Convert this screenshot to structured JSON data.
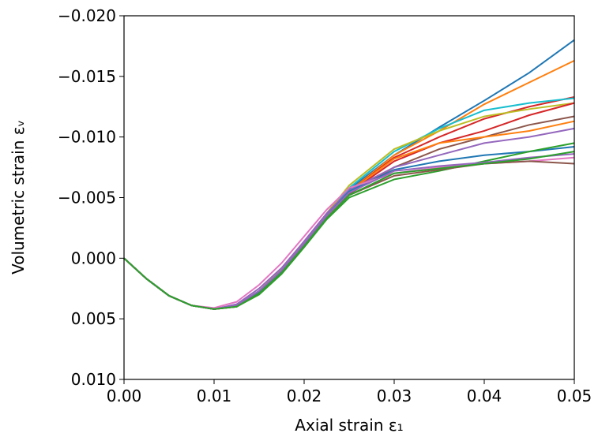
{
  "chart_data": {
    "type": "line",
    "xlabel": "Axial strain ε₁",
    "ylabel": "Volumetric strain εᵥ",
    "x": [
      0,
      0.0025,
      0.005,
      0.0075,
      0.01,
      0.0125,
      0.015,
      0.0175,
      0.02,
      0.0225,
      0.025,
      0.03,
      0.035,
      0.04,
      0.045,
      0.05
    ],
    "xlim": [
      0,
      0.05
    ],
    "xticks": [
      {
        "value": 0,
        "label": "0.00"
      },
      0.01,
      0.02,
      0.03,
      0.04,
      0.05
    ],
    "ylim": [
      0.01,
      -0.02
    ],
    "yticks": [
      {
        "value": 0.01,
        "label": "0.010"
      },
      0.005,
      {
        "value": 0,
        "label": "0.000"
      },
      {
        "value": -0.005,
        "label": "−0.005"
      },
      {
        "value": -0.01,
        "label": "−0.010"
      },
      {
        "value": -0.015,
        "label": "−0.015"
      },
      {
        "value": -0.02,
        "label": "−0.020"
      }
    ],
    "grid": false,
    "series": [
      {
        "color": "#1f77b4",
        "values": [
          0,
          0.0017,
          0.0031,
          0.0039,
          0.0042,
          0.0039,
          0.0027,
          0.001,
          -0.0012,
          -0.0036,
          -0.0057,
          -0.0085,
          -0.0108,
          -0.013,
          -0.0153,
          -0.018
        ]
      },
      {
        "color": "#ff7f0e",
        "values": [
          0,
          0.0017,
          0.0031,
          0.0039,
          0.0042,
          0.0039,
          0.0028,
          0.0011,
          -0.0011,
          -0.0034,
          -0.0055,
          -0.0085,
          -0.0105,
          -0.0127,
          -0.0145,
          -0.0163
        ]
      },
      {
        "color": "#d62728",
        "values": [
          0,
          0.0017,
          0.0031,
          0.0039,
          0.0042,
          0.0039,
          0.0028,
          0.0011,
          -0.0011,
          -0.0035,
          -0.0055,
          -0.0083,
          -0.01,
          -0.0115,
          -0.0125,
          -0.0133
        ]
      },
      {
        "color": "#17becf",
        "values": [
          0,
          0.0017,
          0.0031,
          0.0039,
          0.0042,
          0.0039,
          0.0027,
          0.001,
          -0.0012,
          -0.0036,
          -0.0058,
          -0.0088,
          -0.0107,
          -0.0122,
          -0.0128,
          -0.0132
        ]
      },
      {
        "color": "#bcbd22",
        "values": [
          0,
          0.0017,
          0.0031,
          0.0039,
          0.0042,
          0.0039,
          0.0027,
          0.0009,
          -0.0013,
          -0.0037,
          -0.006,
          -0.009,
          -0.0105,
          -0.0117,
          -0.0123,
          -0.0128
        ]
      },
      {
        "color": "#d62728",
        "values": [
          0,
          0.0017,
          0.0031,
          0.0039,
          0.0042,
          0.0039,
          0.0028,
          0.0011,
          -0.0011,
          -0.0034,
          -0.0054,
          -0.008,
          -0.0095,
          -0.0105,
          -0.0118,
          -0.0128
        ]
      },
      {
        "color": "#8c564b",
        "values": [
          0,
          0.0017,
          0.0031,
          0.0039,
          0.0042,
          0.004,
          0.0029,
          0.0012,
          -0.001,
          -0.0033,
          -0.0053,
          -0.0075,
          -0.009,
          -0.01,
          -0.011,
          -0.0117
        ]
      },
      {
        "color": "#ff7f0e",
        "values": [
          0,
          0.0017,
          0.0031,
          0.0039,
          0.0042,
          0.004,
          0.0029,
          0.0012,
          -0.001,
          -0.0034,
          -0.0055,
          -0.0082,
          -0.0095,
          -0.01,
          -0.0105,
          -0.0113
        ]
      },
      {
        "color": "#9467bd",
        "values": [
          0,
          0.0017,
          0.0031,
          0.0039,
          0.0042,
          0.0038,
          0.0025,
          0.0008,
          -0.0014,
          -0.0037,
          -0.0056,
          -0.0075,
          -0.0085,
          -0.0095,
          -0.01,
          -0.0107
        ]
      },
      {
        "color": "#1f77b4",
        "values": [
          0,
          0.0017,
          0.0031,
          0.0039,
          0.0042,
          0.0039,
          0.0028,
          0.0011,
          -0.0011,
          -0.0035,
          -0.0055,
          -0.0073,
          -0.008,
          -0.0085,
          -0.0088,
          -0.0092
        ]
      },
      {
        "color": "#2ca02c",
        "values": [
          0,
          0.0017,
          0.0031,
          0.0039,
          0.0042,
          0.004,
          0.003,
          0.0013,
          -0.0009,
          -0.0032,
          -0.005,
          -0.0065,
          -0.0072,
          -0.008,
          -0.0088,
          -0.0095
        ]
      },
      {
        "color": "#e377c2",
        "values": [
          0,
          0.0017,
          0.0031,
          0.0039,
          0.0041,
          0.0036,
          0.0022,
          0.0004,
          -0.0018,
          -0.004,
          -0.0058,
          -0.007,
          -0.0075,
          -0.0078,
          -0.008,
          -0.0083
        ]
      },
      {
        "color": "#8c564b",
        "values": [
          0,
          0.0017,
          0.0031,
          0.0039,
          0.0042,
          0.004,
          0.0029,
          0.0012,
          -0.001,
          -0.0033,
          -0.0052,
          -0.0068,
          -0.0073,
          -0.0078,
          -0.008,
          -0.0078
        ]
      },
      {
        "color": "#9467bd",
        "values": [
          0,
          0.0017,
          0.0031,
          0.0039,
          0.0042,
          0.0039,
          0.0027,
          0.001,
          -0.0012,
          -0.0035,
          -0.0054,
          -0.0072,
          -0.0076,
          -0.0079,
          -0.0083,
          -0.0086
        ]
      },
      {
        "color": "#2ca02c",
        "values": [
          0,
          0.0017,
          0.0031,
          0.0039,
          0.0042,
          0.004,
          0.0029,
          0.0012,
          -0.001,
          -0.0033,
          -0.0052,
          -0.007,
          -0.0074,
          -0.0078,
          -0.0082,
          -0.0088
        ]
      }
    ]
  }
}
